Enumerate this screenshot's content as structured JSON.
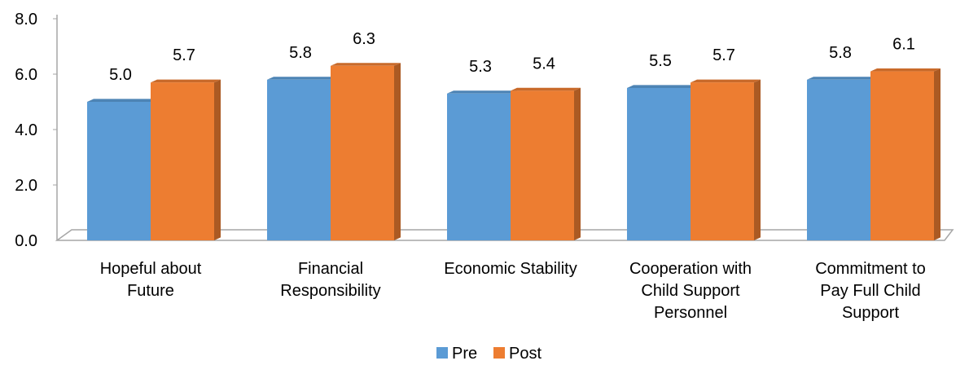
{
  "chart_data": {
    "type": "bar",
    "title": "",
    "xlabel": "",
    "ylabel": "",
    "categories": [
      [
        "Hopeful about",
        "Future"
      ],
      [
        "Financial",
        "Responsibility"
      ],
      [
        "Economic Stability"
      ],
      [
        "Cooperation with",
        "Child Support",
        "Personnel"
      ],
      [
        "Commitment to",
        "Pay Full Child",
        "Support"
      ]
    ],
    "series": [
      {
        "name": "Pre",
        "color": "#5B9BD5",
        "values": [
          5.0,
          5.8,
          5.3,
          5.5,
          5.8
        ],
        "labels": [
          "5.0",
          "5.8",
          "5.3",
          "5.5",
          "5.8"
        ]
      },
      {
        "name": "Post",
        "color": "#ED7D31",
        "values": [
          5.7,
          6.3,
          5.4,
          5.7,
          6.1
        ],
        "labels": [
          "5.7",
          "6.3",
          "5.4",
          "5.7",
          "6.1"
        ]
      }
    ],
    "ylim": [
      0,
      8
    ],
    "yticks": [
      "0.0",
      "2.0",
      "4.0",
      "6.0",
      "8.0"
    ],
    "grid": false,
    "legend_position": "bottom"
  }
}
